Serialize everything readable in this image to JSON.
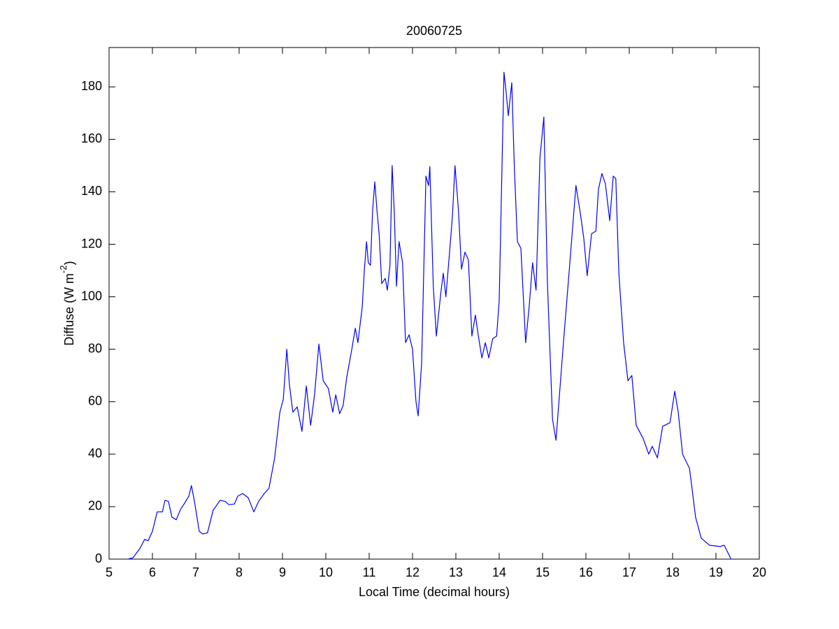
{
  "chart_data": {
    "type": "line",
    "title": "20060725",
    "xlabel": "Local Time (decimal hours)",
    "ylabel": [
      "Diffuse (W m",
      "-2",
      ")"
    ],
    "xlim": [
      5,
      20
    ],
    "ylim": [
      0,
      195
    ],
    "xticks": [
      5,
      6,
      7,
      8,
      9,
      10,
      11,
      12,
      13,
      14,
      15,
      16,
      17,
      18,
      19,
      20
    ],
    "yticks": [
      0,
      20,
      40,
      60,
      80,
      100,
      120,
      140,
      160,
      180
    ],
    "grid": false,
    "series": [
      {
        "color": "#0000ff",
        "x": [
          5.44,
          5.55,
          5.71,
          5.82,
          5.9,
          6.0,
          6.11,
          6.23,
          6.29,
          6.37,
          6.45,
          6.55,
          6.65,
          6.73,
          6.84,
          6.9,
          6.97,
          7.08,
          7.16,
          7.27,
          7.4,
          7.56,
          7.68,
          7.76,
          7.89,
          7.97,
          8.08,
          8.21,
          8.34,
          8.45,
          8.58,
          8.69,
          8.82,
          8.94,
          9.02,
          9.1,
          9.16,
          9.24,
          9.34,
          9.45,
          9.55,
          9.65,
          9.74,
          9.84,
          9.94,
          10.06,
          10.16,
          10.23,
          10.32,
          10.4,
          10.48,
          10.6,
          10.68,
          10.74,
          10.84,
          10.89,
          10.94,
          10.98,
          11.03,
          11.08,
          11.13,
          11.18,
          11.23,
          11.29,
          11.37,
          11.42,
          11.48,
          11.53,
          11.58,
          11.63,
          11.69,
          11.77,
          11.84,
          11.92,
          12.0,
          12.08,
          12.13,
          12.21,
          12.31,
          12.37,
          12.4,
          12.48,
          12.55,
          12.65,
          12.71,
          12.77,
          12.85,
          12.92,
          12.98,
          13.06,
          13.13,
          13.21,
          13.29,
          13.37,
          13.45,
          13.52,
          13.6,
          13.68,
          13.76,
          13.85,
          13.94,
          14.0,
          14.11,
          14.16,
          14.21,
          14.29,
          14.35,
          14.42,
          14.5,
          14.61,
          14.69,
          14.77,
          14.85,
          14.94,
          15.03,
          15.11,
          15.23,
          15.31,
          15.47,
          15.63,
          15.77,
          15.87,
          15.95,
          16.03,
          16.13,
          16.23,
          16.29,
          16.37,
          16.45,
          16.55,
          16.63,
          16.69,
          16.76,
          16.87,
          16.97,
          17.06,
          17.16,
          17.32,
          17.45,
          17.53,
          17.65,
          17.77,
          17.94,
          18.05,
          18.13,
          18.23,
          18.39,
          18.53,
          18.66,
          18.85,
          19.1,
          19.19,
          19.35
        ],
        "values": [
          0,
          0.5,
          4,
          7.5,
          7,
          10.6,
          18,
          18,
          22.4,
          22,
          16,
          15,
          19,
          21,
          24,
          28,
          22,
          10.6,
          9.6,
          10,
          18.6,
          22.4,
          22,
          20.8,
          21,
          24,
          25,
          23.4,
          18,
          22,
          25,
          27,
          38.6,
          56,
          61,
          80,
          66.6,
          56,
          58,
          48.7,
          66,
          51,
          62.6,
          82,
          68,
          65,
          56,
          62.6,
          55.4,
          58.6,
          69,
          80,
          88,
          82.5,
          96,
          110.5,
          121,
          113,
          112,
          133,
          143.8,
          133,
          124,
          105,
          107,
          102.5,
          112,
          150,
          132,
          104,
          121,
          113,
          82.5,
          85.5,
          80,
          60,
          54.6,
          74.5,
          146,
          142.4,
          149.6,
          103.8,
          85,
          101,
          109,
          100,
          116,
          130.5,
          150,
          133,
          110.5,
          117,
          114,
          85,
          93,
          85,
          76.7,
          82.5,
          76.7,
          84,
          85,
          98.5,
          185.6,
          178,
          169,
          181.6,
          149,
          121,
          118.5,
          82.5,
          96,
          113,
          102.5,
          153,
          168.5,
          106.5,
          53.3,
          45.3,
          80,
          113,
          142.4,
          132,
          122.5,
          108,
          124,
          125,
          141,
          147,
          143,
          129,
          146,
          145,
          109,
          82.5,
          68,
          70,
          51,
          46,
          40,
          43,
          38.6,
          50.6,
          52,
          64,
          56,
          40,
          34.6,
          16,
          8,
          5.3,
          4.8,
          5.3,
          0
        ]
      }
    ]
  }
}
